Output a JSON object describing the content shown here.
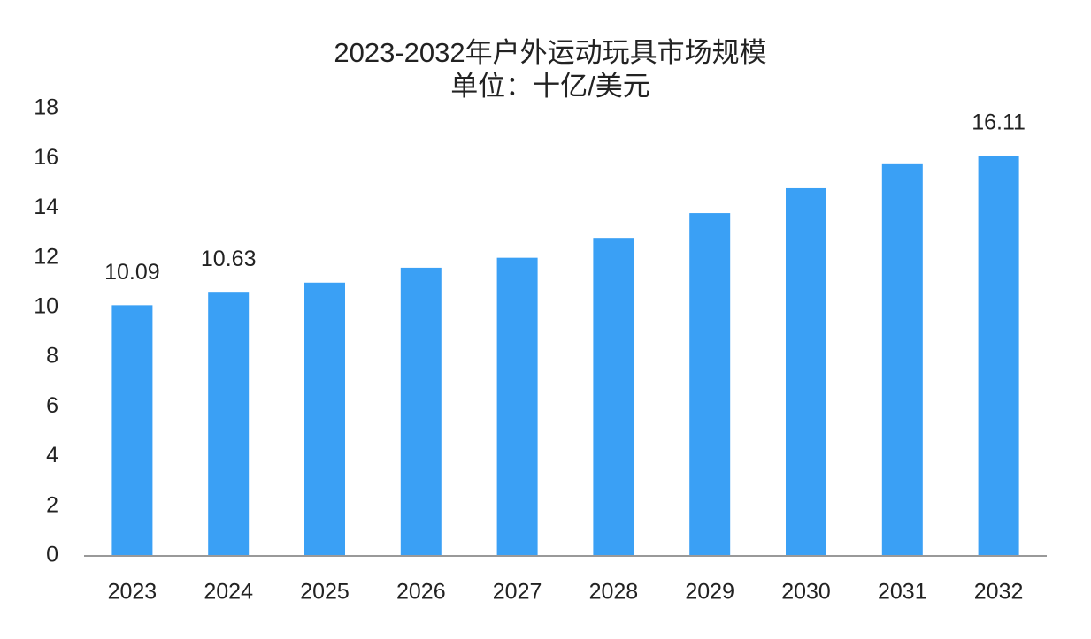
{
  "chart_data": {
    "type": "bar",
    "title": "2023-2032年户外运动玩具市场规模",
    "subtitle": "单位：十亿/美元",
    "categories": [
      "2023",
      "2024",
      "2025",
      "2026",
      "2027",
      "2028",
      "2029",
      "2030",
      "2031",
      "2032"
    ],
    "values": [
      10.09,
      10.63,
      11.0,
      11.6,
      12.0,
      12.8,
      13.8,
      14.8,
      15.8,
      16.11
    ],
    "value_labels": [
      "10.09",
      "10.63",
      null,
      null,
      null,
      null,
      null,
      null,
      null,
      "16.11"
    ],
    "color": "#3aa0f5",
    "ylim": [
      0,
      18
    ],
    "yticks": [
      0,
      2,
      4,
      6,
      8,
      10,
      12,
      14,
      16,
      18
    ],
    "grid": false
  }
}
